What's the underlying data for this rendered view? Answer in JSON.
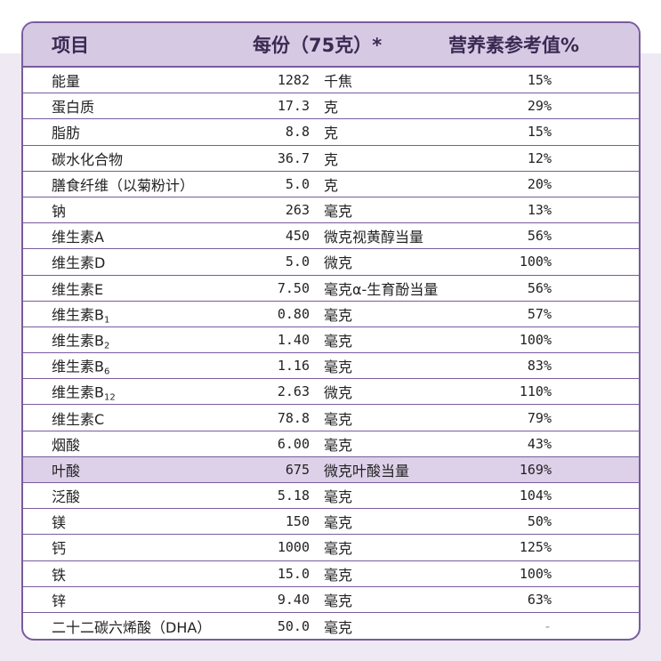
{
  "header": {
    "name": "项目",
    "amount": "每份（75克）*",
    "nrv": "营养素参考值%"
  },
  "rows": [
    {
      "name": "能量",
      "value": "1282",
      "unit": "千焦",
      "nrv": "15%"
    },
    {
      "name": "蛋白质",
      "value": "17.3",
      "unit": "克",
      "nrv": "29%"
    },
    {
      "name": "脂肪",
      "value": "8.8",
      "unit": "克",
      "nrv": "15%"
    },
    {
      "name": "碳水化合物",
      "value": "36.7",
      "unit": "克",
      "nrv": "12%"
    },
    {
      "name": "膳食纤维（以菊粉计）",
      "value": "5.0",
      "unit": "克",
      "nrv": "20%"
    },
    {
      "name": "钠",
      "value": "263",
      "unit": "毫克",
      "nrv": "13%"
    },
    {
      "name": "维生素A",
      "value": "450",
      "unit": "微克视黄醇当量",
      "nrv": "56%"
    },
    {
      "name": "维生素D",
      "value": "5.0",
      "unit": "微克",
      "nrv": "100%"
    },
    {
      "name": "维生素E",
      "value": "7.50",
      "unit": "毫克α-生育酚当量",
      "nrv": "56%"
    },
    {
      "name": "维生素B",
      "sub": "1",
      "value": "0.80",
      "unit": "毫克",
      "nrv": "57%"
    },
    {
      "name": "维生素B",
      "sub": "2",
      "value": "1.40",
      "unit": "毫克",
      "nrv": "100%"
    },
    {
      "name": "维生素B",
      "sub": "6",
      "value": "1.16",
      "unit": "毫克",
      "nrv": "83%"
    },
    {
      "name": "维生素B",
      "sub": "12",
      "value": "2.63",
      "unit": "微克",
      "nrv": "110%"
    },
    {
      "name": "维生素C",
      "value": "78.8",
      "unit": "毫克",
      "nrv": "79%"
    },
    {
      "name": "烟酸",
      "value": "6.00",
      "unit": "毫克",
      "nrv": "43%"
    },
    {
      "name": "叶酸",
      "value": "675",
      "unit": "微克叶酸当量",
      "nrv": "169%",
      "highlight": true
    },
    {
      "name": "泛酸",
      "value": "5.18",
      "unit": "毫克",
      "nrv": "104%"
    },
    {
      "name": "镁",
      "value": "150",
      "unit": "毫克",
      "nrv": "50%"
    },
    {
      "name": "钙",
      "value": "1000",
      "unit": "毫克",
      "nrv": "125%"
    },
    {
      "name": "铁",
      "value": "15.0",
      "unit": "毫克",
      "nrv": "100%"
    },
    {
      "name": "锌",
      "value": "9.40",
      "unit": "毫克",
      "nrv": "63%"
    },
    {
      "name": "二十二碳六烯酸（DHA）",
      "value": "50.0",
      "unit": "毫克",
      "nrv": "-"
    }
  ]
}
